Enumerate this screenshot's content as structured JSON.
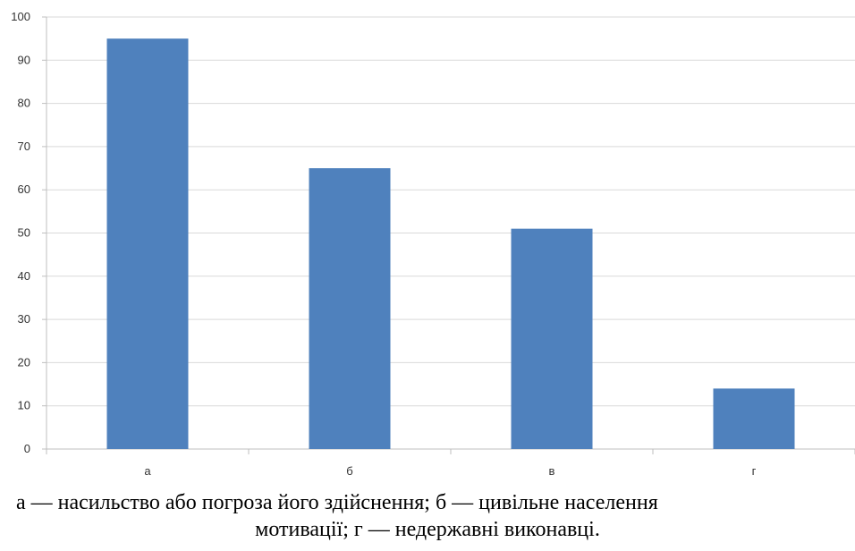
{
  "chart_data": {
    "type": "bar",
    "categories": [
      "а",
      "б",
      "в",
      "г"
    ],
    "values": [
      95,
      65,
      51,
      14
    ],
    "ylim": [
      0,
      100
    ],
    "yticks": [
      0,
      10,
      20,
      30,
      40,
      50,
      60,
      70,
      80,
      90,
      100
    ],
    "grid": true,
    "legend": "none",
    "bar_color": "#4f81bd",
    "grid_color": "#d9d9d9",
    "axis_color": "#bfbfbf"
  },
  "caption": {
    "line1": "а — насильство або погроза його здійснення; б — цивільне населення",
    "line2": "мотивації; г — недержавні виконавці."
  }
}
